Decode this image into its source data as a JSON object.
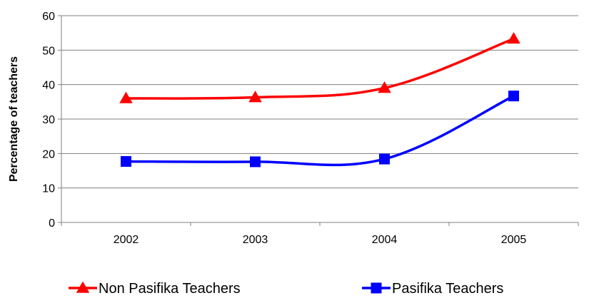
{
  "chart_data": {
    "type": "line",
    "categories": [
      "2002",
      "2003",
      "2004",
      "2005"
    ],
    "series": [
      {
        "name": "Non Pasifika Teachers",
        "values": [
          36,
          36.3,
          39,
          53.3
        ],
        "color": "#ff0000",
        "marker": "triangle"
      },
      {
        "name": "Pasifika Teachers",
        "values": [
          17.7,
          17.6,
          18.4,
          36.7
        ],
        "color": "#0000ff",
        "marker": "square"
      }
    ],
    "ylabel": "Percentage of teachers",
    "xlabel": "",
    "ylim": [
      0,
      60
    ],
    "yticks": [
      0,
      10,
      20,
      30,
      40,
      50,
      60
    ],
    "grid": "horizontal",
    "legend": "bottom"
  }
}
